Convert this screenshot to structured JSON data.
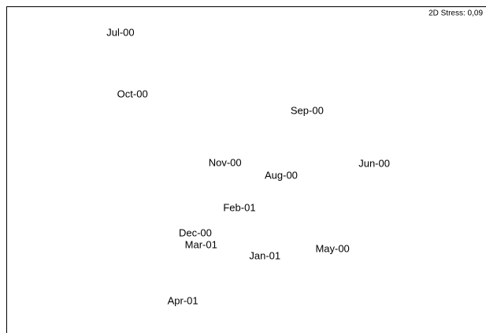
{
  "chart_data": {
    "type": "scatter",
    "annotation": "2D Stress: 0,09",
    "labels": [
      "Jul-00",
      "Oct-00",
      "Sep-00",
      "Nov-00",
      "Aug-00",
      "Jun-00",
      "Feb-01",
      "Dec-00",
      "Mar-01",
      "Jan-01",
      "May-00",
      "Apr-01"
    ],
    "x": [
      23.8,
      26.3,
      62.7,
      45.6,
      57.3,
      76.7,
      48.6,
      39.4,
      40.6,
      53.9,
      68.0,
      36.8
    ],
    "y": [
      91.8,
      72.9,
      67.9,
      51.9,
      48.1,
      51.7,
      38.2,
      30.4,
      26.8,
      23.4,
      25.6,
      9.7
    ],
    "xlim": [
      0,
      100
    ],
    "ylim": [
      0,
      100
    ]
  }
}
